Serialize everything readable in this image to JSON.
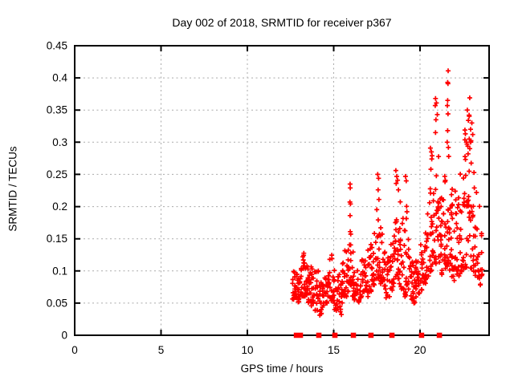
{
  "chart_data": {
    "type": "scatter",
    "title": "Day 002 of 2018, SRMTID for receiver p367",
    "xlabel": "GPS time / hours",
    "ylabel": "SRMTID / TECUs",
    "xlim": [
      0,
      24
    ],
    "ylim": [
      0,
      0.45
    ],
    "xticks": {
      "values": [
        0,
        5,
        10,
        15,
        20
      ],
      "labels": [
        "0",
        "5",
        "10",
        "15",
        "20"
      ]
    },
    "yticks": {
      "values": [
        0,
        0.05,
        0.1,
        0.15,
        0.2,
        0.25,
        0.3,
        0.35,
        0.4,
        0.45
      ],
      "labels": [
        "0",
        "0.05",
        "0.1",
        "0.15",
        "0.2",
        "0.25",
        "0.3",
        "0.35",
        "0.4",
        "0.45"
      ]
    },
    "grid": {
      "show": true,
      "color": "#aaaaaa",
      "style": "dotted"
    },
    "colors": {
      "marker": "#ff0000",
      "axis": "#000000",
      "background": "#ffffff"
    },
    "legend": "none",
    "series": [
      {
        "name": "srmtid-scatter",
        "marker": "plus",
        "color": "#ff0000",
        "points": [
          [
            15.95,
            0.235
          ],
          [
            15.96,
            0.229
          ],
          [
            15.94,
            0.207
          ],
          [
            15.97,
            0.204
          ],
          [
            15.95,
            0.186
          ],
          [
            15.96,
            0.161
          ],
          [
            17.55,
            0.25
          ],
          [
            17.6,
            0.244
          ],
          [
            17.57,
            0.226
          ],
          [
            17.62,
            0.211
          ],
          [
            18.6,
            0.256
          ],
          [
            18.65,
            0.247
          ],
          [
            18.7,
            0.241
          ],
          [
            18.62,
            0.236
          ],
          [
            18.75,
            0.226
          ],
          [
            19.16,
            0.247
          ],
          [
            19.2,
            0.24
          ],
          [
            20.6,
            0.291
          ],
          [
            20.66,
            0.285
          ],
          [
            20.7,
            0.279
          ],
          [
            20.68,
            0.274
          ],
          [
            20.63,
            0.258
          ],
          [
            20.9,
            0.368
          ],
          [
            20.95,
            0.361
          ],
          [
            20.88,
            0.357
          ],
          [
            21.0,
            0.343
          ],
          [
            20.92,
            0.335
          ],
          [
            20.9,
            0.315
          ],
          [
            21.63,
            0.411
          ],
          [
            21.6,
            0.393
          ],
          [
            21.62,
            0.391
          ],
          [
            21.6,
            0.365
          ],
          [
            21.58,
            0.357
          ],
          [
            21.62,
            0.344
          ],
          [
            21.6,
            0.318
          ],
          [
            21.57,
            0.3
          ],
          [
            21.64,
            0.292
          ],
          [
            21.66,
            0.278
          ],
          [
            22.6,
            0.319
          ],
          [
            22.63,
            0.313
          ],
          [
            22.74,
            0.35
          ],
          [
            22.88,
            0.369
          ],
          [
            22.8,
            0.334
          ],
          [
            22.7,
            0.3
          ],
          [
            22.72,
            0.297
          ],
          [
            22.78,
            0.282
          ],
          [
            22.85,
            0.305
          ],
          [
            23.0,
            0.33
          ],
          [
            23.05,
            0.312
          ]
        ],
        "clusters": [
          [
            12.68,
            0.055,
            0.1,
            13,
            1.6
          ],
          [
            12.82,
            0.058,
            0.096,
            11,
            1.6
          ],
          [
            12.95,
            0.05,
            0.09,
            10,
            1.6
          ],
          [
            13.1,
            0.055,
            0.105,
            12,
            1.6
          ],
          [
            13.28,
            0.06,
            0.132,
            15,
            1.8
          ],
          [
            13.42,
            0.062,
            0.135,
            13,
            1.8
          ],
          [
            13.58,
            0.05,
            0.12,
            12,
            1.7
          ],
          [
            13.72,
            0.045,
            0.115,
            12,
            1.7
          ],
          [
            13.88,
            0.038,
            0.105,
            11,
            1.6
          ],
          [
            14.05,
            0.035,
            0.1,
            12,
            1.6
          ],
          [
            14.22,
            0.03,
            0.092,
            12,
            1.5
          ],
          [
            14.38,
            0.04,
            0.098,
            10,
            1.5
          ],
          [
            14.55,
            0.05,
            0.115,
            12,
            1.6
          ],
          [
            14.72,
            0.058,
            0.128,
            12,
            1.7
          ],
          [
            14.9,
            0.052,
            0.13,
            12,
            1.7
          ],
          [
            15.06,
            0.04,
            0.112,
            12,
            1.6
          ],
          [
            15.22,
            0.035,
            0.1,
            10,
            1.5
          ],
          [
            15.38,
            0.032,
            0.096,
            10,
            1.5
          ],
          [
            15.52,
            0.05,
            0.12,
            12,
            1.6
          ],
          [
            15.68,
            0.06,
            0.132,
            12,
            1.7
          ],
          [
            15.82,
            0.068,
            0.15,
            13,
            1.8
          ],
          [
            15.96,
            0.078,
            0.168,
            13,
            1.8
          ],
          [
            16.1,
            0.06,
            0.132,
            12,
            1.7
          ],
          [
            16.26,
            0.055,
            0.12,
            10,
            1.6
          ],
          [
            16.42,
            0.05,
            0.115,
            10,
            1.6
          ],
          [
            16.58,
            0.058,
            0.122,
            10,
            1.6
          ],
          [
            16.74,
            0.065,
            0.13,
            10,
            1.6
          ],
          [
            16.88,
            0.07,
            0.142,
            11,
            1.7
          ],
          [
            17.02,
            0.06,
            0.135,
            12,
            1.7
          ],
          [
            17.18,
            0.068,
            0.15,
            12,
            1.7
          ],
          [
            17.34,
            0.078,
            0.162,
            12,
            1.8
          ],
          [
            17.5,
            0.088,
            0.2,
            12,
            1.9
          ],
          [
            17.64,
            0.09,
            0.185,
            12,
            1.8
          ],
          [
            17.78,
            0.08,
            0.168,
            12,
            1.8
          ],
          [
            17.92,
            0.065,
            0.14,
            10,
            1.7
          ],
          [
            18.06,
            0.055,
            0.122,
            10,
            1.6
          ],
          [
            18.22,
            0.06,
            0.132,
            10,
            1.6
          ],
          [
            18.38,
            0.07,
            0.15,
            12,
            1.7
          ],
          [
            18.54,
            0.08,
            0.185,
            12,
            1.8
          ],
          [
            18.68,
            0.088,
            0.21,
            13,
            1.8
          ],
          [
            18.82,
            0.08,
            0.225,
            12,
            1.9
          ],
          [
            18.96,
            0.07,
            0.19,
            10,
            1.8
          ],
          [
            19.1,
            0.06,
            0.165,
            10,
            1.7
          ],
          [
            19.24,
            0.078,
            0.21,
            10,
            1.8
          ],
          [
            19.38,
            0.07,
            0.15,
            10,
            1.7
          ],
          [
            19.52,
            0.055,
            0.122,
            10,
            1.6
          ],
          [
            19.66,
            0.05,
            0.112,
            10,
            1.6
          ],
          [
            19.8,
            0.058,
            0.12,
            10,
            1.6
          ],
          [
            19.95,
            0.065,
            0.13,
            10,
            1.6
          ],
          [
            20.1,
            0.07,
            0.142,
            12,
            1.7
          ],
          [
            20.26,
            0.08,
            0.162,
            12,
            1.7
          ],
          [
            20.42,
            0.088,
            0.2,
            12,
            1.8
          ],
          [
            20.58,
            0.098,
            0.235,
            12,
            1.8
          ],
          [
            20.72,
            0.1,
            0.25,
            12,
            1.8
          ],
          [
            20.88,
            0.11,
            0.27,
            12,
            1.8
          ],
          [
            21.02,
            0.12,
            0.3,
            12,
            1.8
          ],
          [
            21.16,
            0.1,
            0.26,
            12,
            1.8
          ],
          [
            21.3,
            0.09,
            0.23,
            12,
            1.8
          ],
          [
            21.46,
            0.1,
            0.25,
            12,
            1.8
          ],
          [
            21.6,
            0.105,
            0.28,
            14,
            1.7
          ],
          [
            21.76,
            0.1,
            0.26,
            12,
            1.8
          ],
          [
            21.9,
            0.09,
            0.23,
            12,
            1.8
          ],
          [
            22.04,
            0.085,
            0.225,
            12,
            1.8
          ],
          [
            22.2,
            0.09,
            0.25,
            12,
            1.8
          ],
          [
            22.36,
            0.095,
            0.27,
            12,
            1.8
          ],
          [
            22.52,
            0.1,
            0.3,
            12,
            1.8
          ],
          [
            22.66,
            0.1,
            0.32,
            12,
            1.8
          ],
          [
            22.8,
            0.105,
            0.345,
            12,
            1.8
          ],
          [
            22.94,
            0.1,
            0.33,
            12,
            1.8
          ],
          [
            23.08,
            0.095,
            0.285,
            12,
            1.8
          ],
          [
            23.24,
            0.09,
            0.25,
            10,
            1.8
          ],
          [
            23.4,
            0.085,
            0.205,
            10,
            1.7
          ],
          [
            23.54,
            0.078,
            0.162,
            9,
            1.6
          ]
        ],
        "x_jitter": 0.14,
        "prng_seed": 1234
      },
      {
        "name": "zero-line-markers",
        "marker": "filled-square",
        "color": "#ff0000",
        "y": 0,
        "x": [
          12.84,
          13.07,
          14.14,
          15.07,
          16.14,
          17.16,
          18.37,
          20.09,
          21.12
        ]
      }
    ]
  }
}
